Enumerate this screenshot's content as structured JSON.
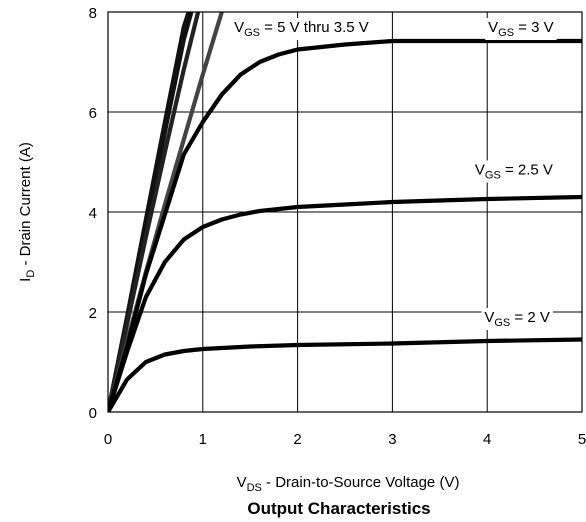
{
  "chart_data": {
    "type": "line",
    "caption": "Output Characteristics",
    "xlabel": {
      "main": "V",
      "sub": "DS",
      "rest": " - Drain-to-Source Voltage (V)"
    },
    "ylabel": {
      "main": "I",
      "sub": "D",
      "rest": " - Drain Current (A)"
    },
    "xlim": [
      0,
      5
    ],
    "ylim": [
      0,
      8
    ],
    "x_ticks": [
      0,
      1,
      2,
      3,
      4,
      5
    ],
    "y_ticks": [
      0,
      2,
      4,
      6,
      8
    ],
    "grid": true,
    "series": [
      {
        "color": "#111111",
        "x": [
          0,
          0.2,
          0.4,
          0.6,
          0.8,
          0.85
        ],
        "y": [
          0,
          1.9,
          3.85,
          5.8,
          7.7,
          8.0
        ]
      },
      {
        "color": "#111111",
        "x": [
          0,
          0.2,
          0.4,
          0.6,
          0.8,
          0.88
        ],
        "y": [
          0,
          1.85,
          3.7,
          5.6,
          7.45,
          8.0
        ]
      },
      {
        "color": "#222222",
        "x": [
          0,
          0.2,
          0.4,
          0.6,
          0.8,
          0.95
        ],
        "y": [
          0,
          1.75,
          3.5,
          5.2,
          6.85,
          8.0
        ]
      },
      {
        "color": "#444444",
        "x": [
          0,
          0.2,
          0.4,
          0.6,
          0.8,
          1.0,
          1.2
        ],
        "y": [
          0,
          1.4,
          2.8,
          4.15,
          5.45,
          6.75,
          8.0
        ]
      },
      {
        "color": "#000000",
        "x": [
          0,
          0.2,
          0.4,
          0.6,
          0.8,
          1.0,
          1.2,
          1.4,
          1.6,
          1.8,
          2.0,
          2.5,
          3.0,
          4.0,
          5.0
        ],
        "y": [
          0,
          1.3,
          2.75,
          3.95,
          5.15,
          5.8,
          6.35,
          6.75,
          7.0,
          7.15,
          7.25,
          7.35,
          7.42,
          7.42,
          7.42
        ]
      },
      {
        "color": "#000000",
        "x": [
          0,
          0.2,
          0.4,
          0.6,
          0.8,
          1.0,
          1.2,
          1.4,
          1.6,
          2.0,
          2.5,
          3.0,
          3.5,
          4.0,
          5.0
        ],
        "y": [
          0,
          1.2,
          2.3,
          3.0,
          3.45,
          3.7,
          3.85,
          3.95,
          4.02,
          4.1,
          4.15,
          4.2,
          4.23,
          4.26,
          4.3
        ]
      },
      {
        "color": "#000000",
        "x": [
          0,
          0.2,
          0.4,
          0.6,
          0.8,
          1.0,
          1.5,
          2.0,
          3.0,
          4.0,
          5.0
        ],
        "y": [
          0,
          0.65,
          1.0,
          1.15,
          1.22,
          1.26,
          1.31,
          1.34,
          1.37,
          1.42,
          1.45
        ]
      }
    ],
    "annotations": [
      {
        "id": "vgs-5-thru-3p5",
        "main": "V",
        "sub": "GS",
        "rest": " = 5 V thru 3.5 V",
        "x": 1.33,
        "y": 7.6
      },
      {
        "id": "vgs-3",
        "main": "V",
        "sub": "GS",
        "rest": " = 3 V",
        "x": 4.01,
        "y": 7.6
      },
      {
        "id": "vgs-2p5",
        "main": "V",
        "sub": "GS",
        "rest": " = 2.5 V",
        "x": 3.87,
        "y": 4.75
      },
      {
        "id": "vgs-2",
        "main": "V",
        "sub": "GS",
        "rest": " = 2 V",
        "x": 3.97,
        "y": 1.8
      }
    ]
  }
}
